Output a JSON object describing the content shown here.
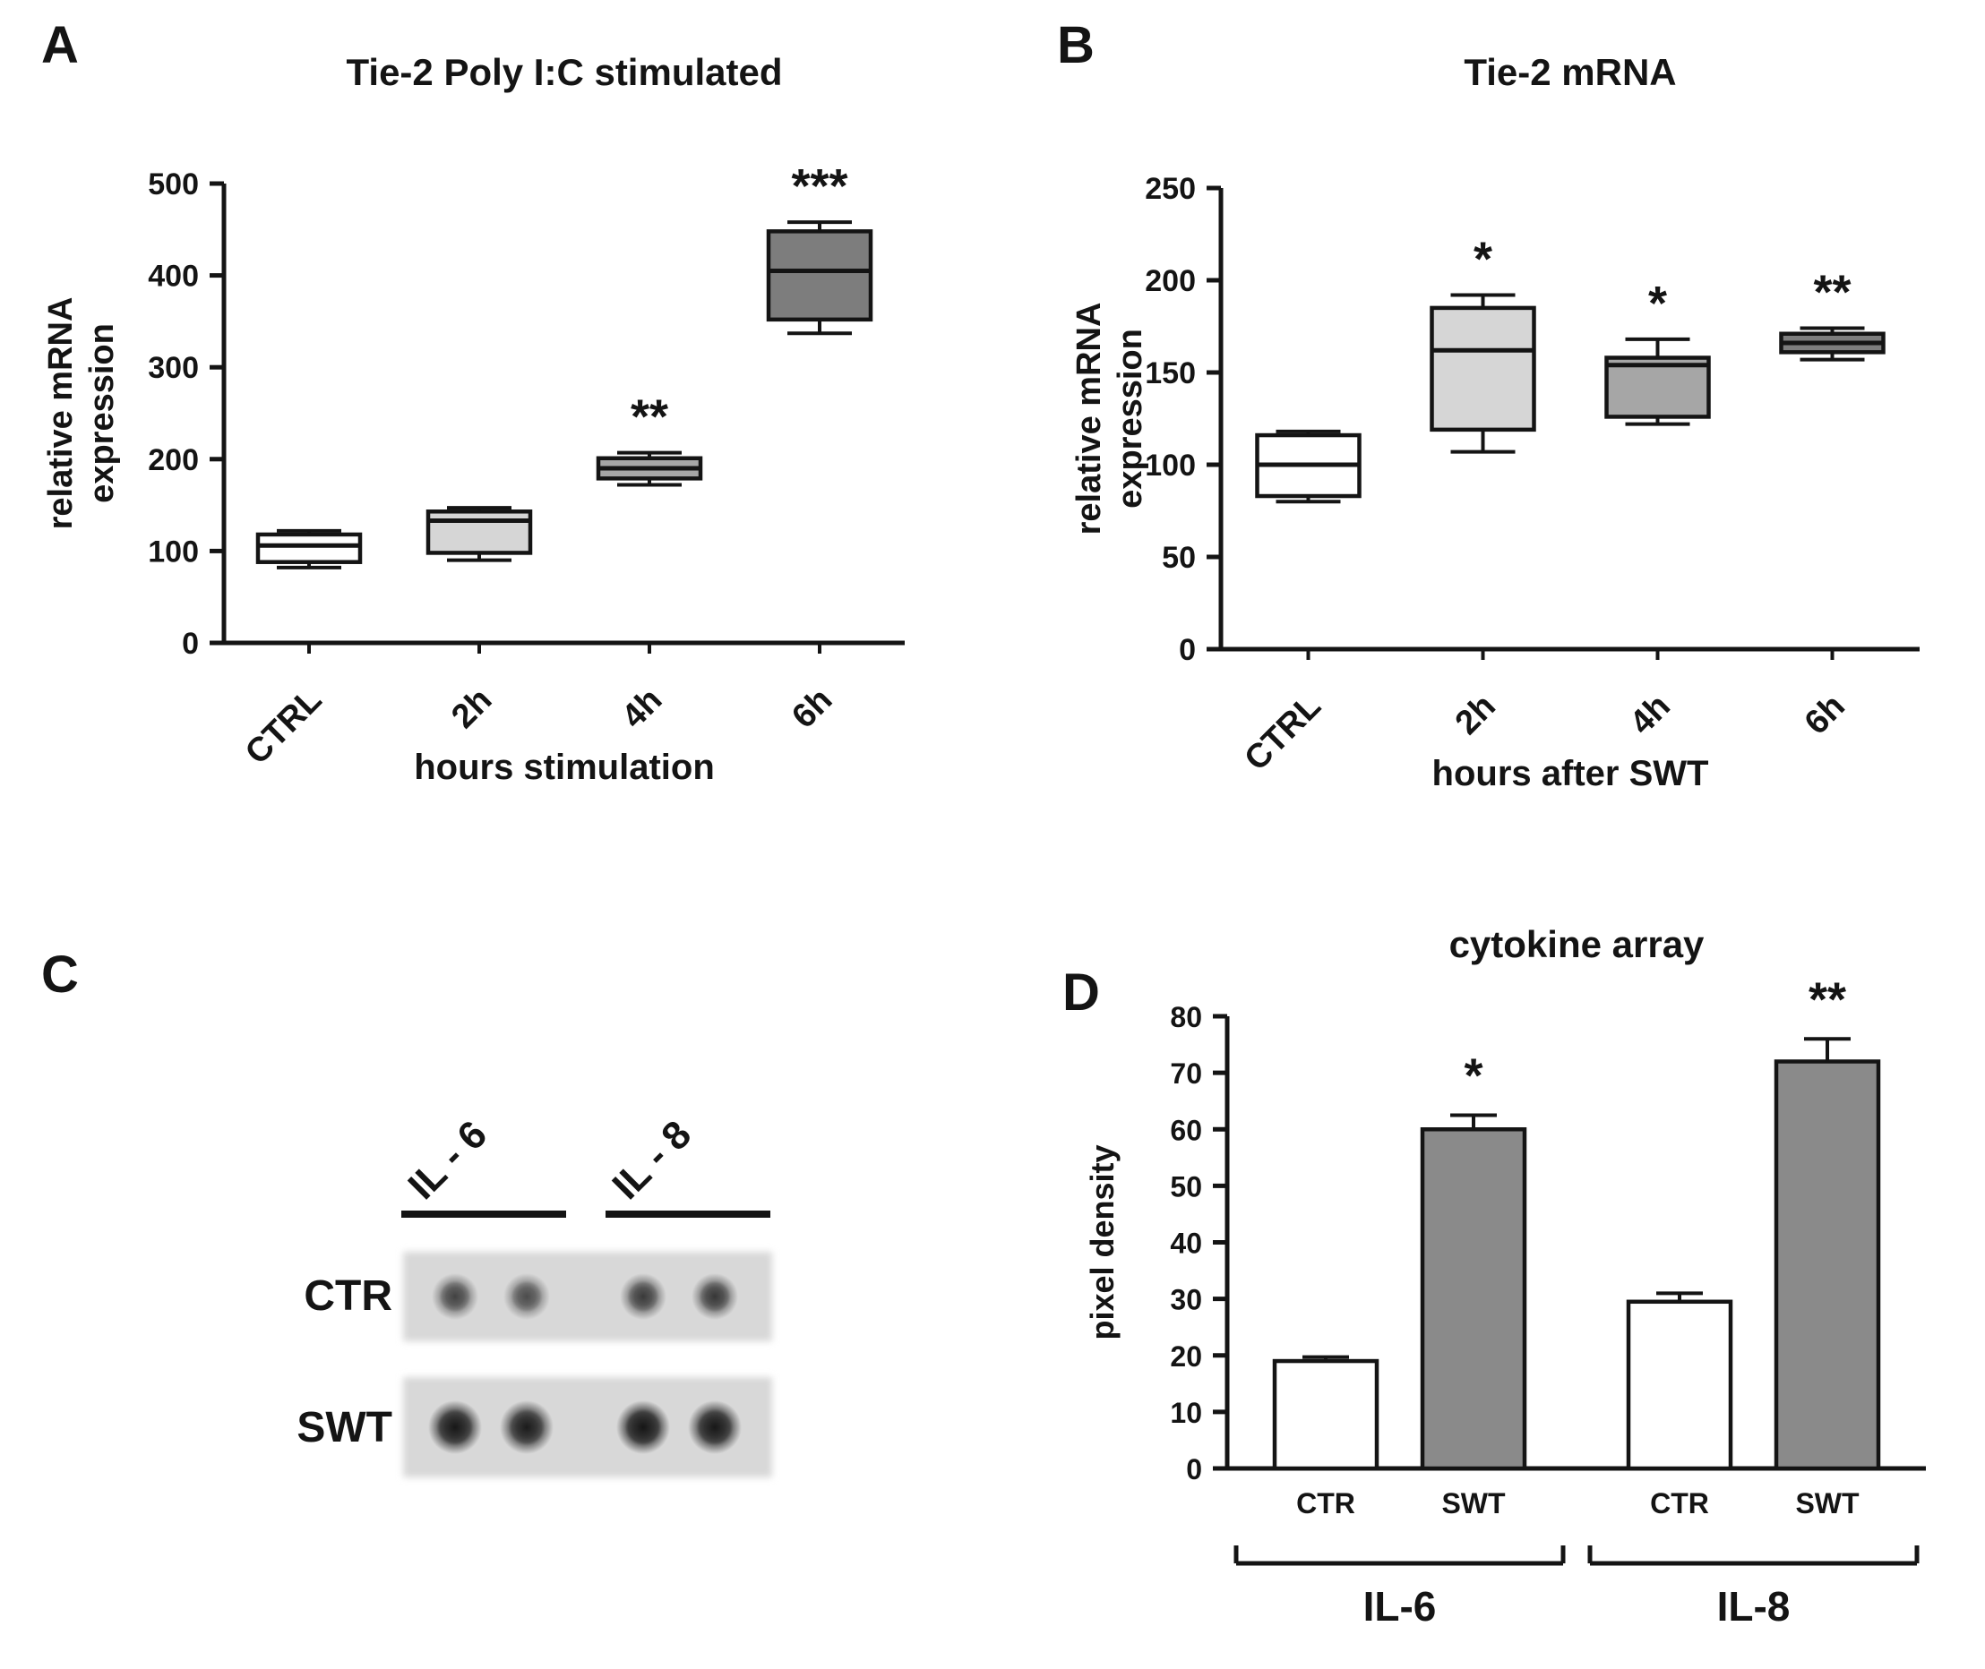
{
  "panels": {
    "A": {
      "label": "A"
    },
    "B": {
      "label": "B"
    },
    "C": {
      "label": "C"
    },
    "D": {
      "label": "D"
    }
  },
  "chart_data": [
    {
      "type": "box",
      "panel": "A",
      "title": "Tie-2 Poly I:C stimulated",
      "ylabel_lines": [
        "relative mRNA",
        "expression"
      ],
      "xlabel": "hours stimulation",
      "ylim": [
        0,
        500
      ],
      "yticks": [
        0,
        100,
        200,
        300,
        400,
        500
      ],
      "categories": [
        "CTRL",
        "2h",
        "4h",
        "6h"
      ],
      "grid": false,
      "legend": "none",
      "boxes": [
        {
          "category": "CTRL",
          "whisker_low": 82,
          "q1": 88,
          "median": 106,
          "q3": 118,
          "whisker_high": 122,
          "fill": "#ffffff",
          "significance": ""
        },
        {
          "category": "2h",
          "whisker_low": 90,
          "q1": 98,
          "median": 133,
          "q3": 143,
          "whisker_high": 147,
          "fill": "#d6d6d6",
          "significance": ""
        },
        {
          "category": "4h",
          "whisker_low": 172,
          "q1": 179,
          "median": 190,
          "q3": 201,
          "whisker_high": 207,
          "fill": "#a6a6a6",
          "significance": "**"
        },
        {
          "category": "6h",
          "whisker_low": 337,
          "q1": 352,
          "median": 405,
          "q3": 448,
          "whisker_high": 458,
          "fill": "#7d7d7d",
          "significance": "***"
        }
      ]
    },
    {
      "type": "box",
      "panel": "B",
      "title": "Tie-2 mRNA",
      "ylabel_lines": [
        "relative mRNA",
        "expression"
      ],
      "xlabel": "hours after SWT",
      "ylim": [
        0,
        250
      ],
      "yticks": [
        0,
        50,
        100,
        150,
        200,
        250
      ],
      "categories": [
        "CTRL",
        "2h",
        "4h",
        "6h"
      ],
      "grid": false,
      "legend": "none",
      "boxes": [
        {
          "category": "CTRL",
          "whisker_low": 80,
          "q1": 83,
          "median": 100,
          "q3": 116,
          "whisker_high": 118,
          "fill": "#ffffff",
          "significance": ""
        },
        {
          "category": "2h",
          "whisker_low": 107,
          "q1": 119,
          "median": 162,
          "q3": 185,
          "whisker_high": 192,
          "fill": "#d6d6d6",
          "significance": "*"
        },
        {
          "category": "4h",
          "whisker_low": 122,
          "q1": 126,
          "median": 154,
          "q3": 158,
          "whisker_high": 168,
          "fill": "#a6a6a6",
          "significance": "*"
        },
        {
          "category": "6h",
          "whisker_low": 157,
          "q1": 161,
          "median": 166,
          "q3": 171,
          "whisker_high": 174,
          "fill": "#7d7d7d",
          "significance": "**"
        }
      ]
    },
    {
      "type": "heatmap",
      "subtype": "dot-blot-image",
      "panel": "C",
      "column_labels": [
        "IL - 6",
        "IL - 8"
      ],
      "row_labels": [
        "CTR",
        "SWT"
      ],
      "spots_per_column": 2,
      "spot_intensities": {
        "CTR": [
          0.55,
          0.5,
          0.6,
          0.62
        ],
        "SWT": [
          0.95,
          0.88,
          1.0,
          0.95
        ]
      }
    },
    {
      "type": "bar",
      "panel": "D",
      "title": "cytokine array",
      "ylabel": "pixel density",
      "ylim": [
        0,
        80
      ],
      "yticks": [
        0,
        10,
        20,
        30,
        40,
        50,
        60,
        70,
        80
      ],
      "grid": false,
      "legend": "none",
      "bars": [
        {
          "group": "IL-6",
          "label": "CTR",
          "value": 19,
          "error": 0.7,
          "fill": "#ffffff",
          "significance": ""
        },
        {
          "group": "IL-6",
          "label": "SWT",
          "value": 60,
          "error": 2.5,
          "fill": "#8a8a8a",
          "significance": "*"
        },
        {
          "group": "IL-8",
          "label": "CTR",
          "value": 29.5,
          "error": 1.5,
          "fill": "#ffffff",
          "significance": ""
        },
        {
          "group": "IL-8",
          "label": "SWT",
          "value": 72,
          "error": 4,
          "fill": "#8a8a8a",
          "significance": "**"
        }
      ],
      "group_brackets": [
        {
          "label": "IL-6",
          "from": 0,
          "to": 1
        },
        {
          "label": "IL-8",
          "from": 2,
          "to": 3
        }
      ]
    }
  ],
  "colors": {
    "ink": "#141414",
    "box_ctrl": "#ffffff",
    "box_light": "#d6d6d6",
    "box_mid": "#a6a6a6",
    "box_dark": "#7d7d7d",
    "bar_swt": "#8a8a8a",
    "blot_strip": "#d8d8d8"
  }
}
